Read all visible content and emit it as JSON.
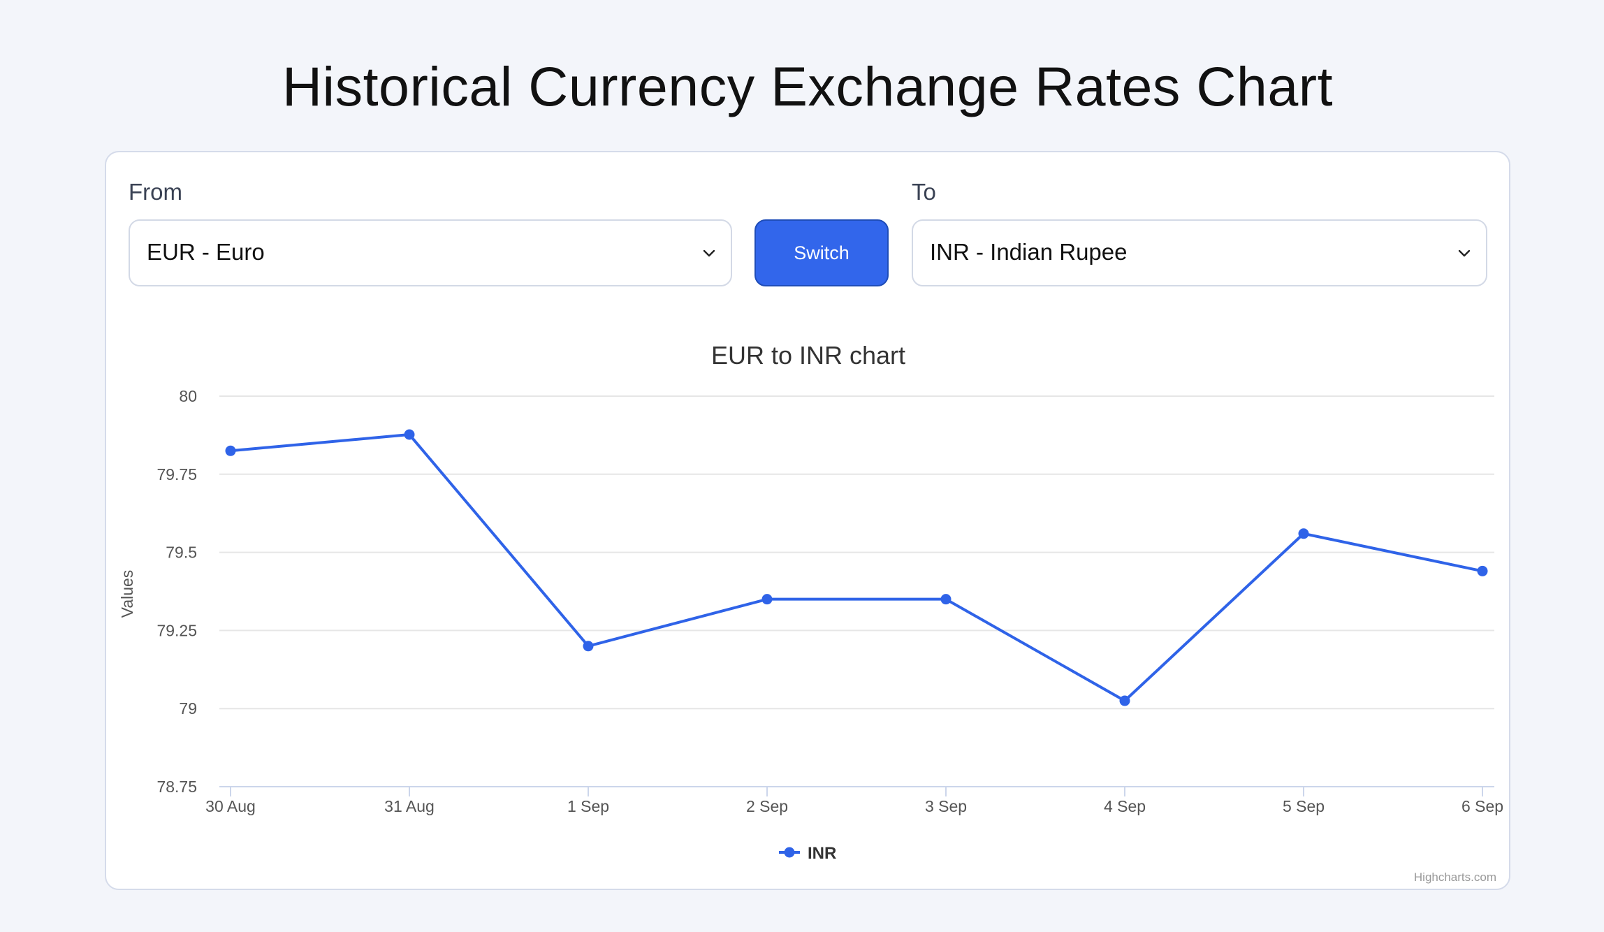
{
  "page": {
    "title": "Historical Currency Exchange Rates Chart"
  },
  "form": {
    "from_label": "From",
    "from_value": "EUR - Euro",
    "switch_label": "Switch",
    "to_label": "To",
    "to_value": "INR - Indian Rupee"
  },
  "colors": {
    "accent": "#3266eb",
    "series": "#2f63e8",
    "grid": "#e6e6e6",
    "axis": "#ccd6eb"
  },
  "chart_data": {
    "type": "line",
    "title": "EUR to INR chart",
    "xlabel": "",
    "ylabel": "Values",
    "categories": [
      "30 Aug",
      "31 Aug",
      "1 Sep",
      "2 Sep",
      "3 Sep",
      "4 Sep",
      "5 Sep",
      "6 Sep"
    ],
    "series": [
      {
        "name": "INR",
        "values": [
          79.825,
          79.877,
          79.2,
          79.35,
          79.35,
          79.025,
          79.56,
          79.44
        ]
      }
    ],
    "ylim": [
      78.75,
      80
    ],
    "yticks": [
      "78.75",
      "79",
      "79.25",
      "79.5",
      "79.75",
      "80"
    ],
    "grid": true,
    "legend_position": "bottom-center",
    "credits": "Highcharts.com"
  }
}
